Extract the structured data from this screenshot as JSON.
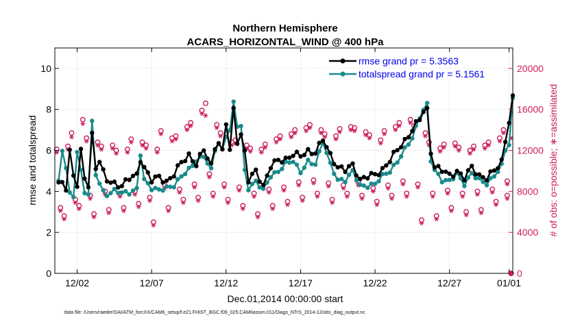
{
  "chart_data": {
    "type": "line",
    "title_line1": "Northern Hemisphere",
    "title_line2": "ACARS_HORIZONTAL_WIND @ 400 hPa",
    "xlabel": "Dec.01,2014 00:00:00 start",
    "ylabel": "rmse and totalspread",
    "y2label": "# of obs: o=possible; ∗=assimilated",
    "footer": "data file: /Users/raeder/DAI/ATM_forcXX/CAM6_setup/f.e21.FHIST_BGC.f09_025.CAM6assim.011/Diags_NTrS_2014-12/obs_diag_output.nc",
    "xlim": [
      0.5,
      31.25
    ],
    "ylim": [
      0,
      11
    ],
    "y2lim": [
      0,
      22000
    ],
    "x_ticks": [
      {
        "x": 2,
        "label": "12/02"
      },
      {
        "x": 7,
        "label": "12/07"
      },
      {
        "x": 12,
        "label": "12/12"
      },
      {
        "x": 17,
        "label": "12/17"
      },
      {
        "x": 22,
        "label": "12/22"
      },
      {
        "x": 27,
        "label": "12/27"
      },
      {
        "x": 31,
        "label": "01/01"
      }
    ],
    "y_ticks": [
      0,
      2,
      4,
      6,
      8,
      10
    ],
    "y2_ticks": [
      0,
      4000,
      8000,
      12000,
      16000,
      20000
    ],
    "colors": {
      "rmse": "#000000",
      "spread": "#1a8a8a",
      "obs": "#cc1c5e"
    },
    "legend": [
      {
        "label": "rmse grand pr = 5.3563",
        "series": "rmse"
      },
      {
        "label": "totalspread grand pr = 5.1561",
        "series": "spread"
      }
    ],
    "rmse_anchors": [
      [
        0.75,
        4.3
      ],
      [
        1.0,
        4.4
      ],
      [
        1.25,
        4.2
      ],
      [
        1.5,
        6.0
      ],
      [
        1.75,
        4.8
      ],
      [
        2.0,
        4.3
      ],
      [
        2.25,
        5.9
      ],
      [
        2.5,
        4.6
      ],
      [
        2.75,
        4.3
      ],
      [
        3.0,
        6.8
      ],
      [
        3.25,
        5.2
      ],
      [
        3.5,
        5.5
      ],
      [
        3.75,
        4.9
      ],
      [
        4.0,
        4.5
      ],
      [
        4.5,
        4.4
      ],
      [
        5.0,
        4.3
      ],
      [
        5.5,
        4.6
      ],
      [
        6.0,
        4.8
      ],
      [
        6.25,
        5.6
      ],
      [
        6.5,
        5.2
      ],
      [
        7.0,
        4.5
      ],
      [
        7.5,
        4.7
      ],
      [
        8.0,
        4.5
      ],
      [
        8.5,
        4.8
      ],
      [
        9.0,
        5.4
      ],
      [
        9.5,
        5.8
      ],
      [
        10.0,
        5.3
      ],
      [
        10.5,
        6.0
      ],
      [
        11.0,
        5.3
      ],
      [
        11.25,
        6.2
      ],
      [
        11.5,
        6.4
      ],
      [
        11.75,
        5.9
      ],
      [
        12.0,
        7.3
      ],
      [
        12.25,
        6.0
      ],
      [
        12.5,
        8.0
      ],
      [
        12.75,
        6.5
      ],
      [
        13.0,
        6.8
      ],
      [
        13.25,
        5.9
      ],
      [
        13.5,
        4.5
      ],
      [
        14.0,
        5.0
      ],
      [
        14.5,
        4.3
      ],
      [
        15.0,
        5.2
      ],
      [
        15.5,
        5.5
      ],
      [
        16.0,
        5.6
      ],
      [
        16.5,
        5.8
      ],
      [
        17.0,
        5.7
      ],
      [
        17.5,
        6.0
      ],
      [
        18.0,
        5.9
      ],
      [
        18.5,
        6.5
      ],
      [
        19.0,
        5.8
      ],
      [
        19.5,
        5.2
      ],
      [
        20.0,
        5.0
      ],
      [
        20.5,
        5.3
      ],
      [
        21.0,
        4.6
      ],
      [
        21.5,
        4.7
      ],
      [
        22.0,
        4.8
      ],
      [
        22.5,
        5.1
      ],
      [
        23.0,
        5.5
      ],
      [
        23.5,
        6.0
      ],
      [
        24.0,
        6.5
      ],
      [
        24.5,
        7.0
      ],
      [
        25.0,
        7.5
      ],
      [
        25.25,
        7.9
      ],
      [
        25.5,
        8.0
      ],
      [
        25.75,
        6.0
      ],
      [
        26.0,
        5.2
      ],
      [
        26.5,
        5.0
      ],
      [
        27.0,
        4.8
      ],
      [
        27.5,
        5.0
      ],
      [
        28.0,
        4.6
      ],
      [
        28.5,
        5.2
      ],
      [
        29.0,
        4.8
      ],
      [
        29.5,
        4.6
      ],
      [
        30.0,
        5.0
      ],
      [
        30.5,
        5.5
      ],
      [
        30.75,
        6.5
      ],
      [
        31.0,
        7.4
      ],
      [
        31.25,
        8.5
      ]
    ],
    "spread_anchors": [
      [
        0.75,
        4.5
      ],
      [
        1.0,
        6.0
      ],
      [
        1.25,
        5.2
      ],
      [
        1.5,
        3.8
      ],
      [
        1.75,
        3.7
      ],
      [
        2.0,
        6.0
      ],
      [
        2.25,
        5.0
      ],
      [
        2.5,
        4.0
      ],
      [
        2.75,
        3.9
      ],
      [
        3.0,
        7.3
      ],
      [
        3.25,
        4.8
      ],
      [
        3.5,
        4.4
      ],
      [
        3.75,
        4.0
      ],
      [
        4.0,
        3.9
      ],
      [
        4.5,
        4.0
      ],
      [
        5.0,
        3.9
      ],
      [
        5.5,
        4.0
      ],
      [
        6.0,
        4.1
      ],
      [
        6.25,
        5.8
      ],
      [
        6.5,
        4.5
      ],
      [
        7.0,
        4.2
      ],
      [
        7.5,
        4.1
      ],
      [
        8.0,
        4.1
      ],
      [
        8.5,
        4.3
      ],
      [
        9.0,
        4.8
      ],
      [
        9.5,
        5.0
      ],
      [
        10.0,
        5.5
      ],
      [
        10.5,
        5.8
      ],
      [
        11.0,
        5.0
      ],
      [
        11.25,
        6.0
      ],
      [
        11.5,
        6.3
      ],
      [
        11.75,
        6.0
      ],
      [
        12.0,
        6.8
      ],
      [
        12.25,
        7.0
      ],
      [
        12.5,
        8.3
      ],
      [
        12.75,
        7.2
      ],
      [
        13.0,
        7.1
      ],
      [
        13.25,
        5.0
      ],
      [
        13.5,
        4.2
      ],
      [
        14.0,
        4.5
      ],
      [
        14.5,
        4.0
      ],
      [
        15.0,
        4.8
      ],
      [
        15.5,
        5.0
      ],
      [
        16.0,
        5.3
      ],
      [
        16.5,
        5.5
      ],
      [
        17.0,
        5.0
      ],
      [
        17.5,
        5.4
      ],
      [
        18.0,
        5.3
      ],
      [
        18.5,
        6.5
      ],
      [
        19.0,
        5.3
      ],
      [
        19.5,
        4.5
      ],
      [
        20.0,
        4.6
      ],
      [
        20.5,
        5.0
      ],
      [
        21.0,
        4.2
      ],
      [
        21.5,
        4.3
      ],
      [
        22.0,
        4.4
      ],
      [
        22.5,
        4.7
      ],
      [
        23.0,
        5.0
      ],
      [
        23.5,
        5.5
      ],
      [
        24.0,
        6.0
      ],
      [
        24.5,
        6.6
      ],
      [
        25.0,
        7.7
      ],
      [
        25.25,
        8.0
      ],
      [
        25.5,
        8.2
      ],
      [
        25.75,
        5.5
      ],
      [
        26.0,
        5.0
      ],
      [
        26.5,
        4.6
      ],
      [
        27.0,
        4.5
      ],
      [
        27.5,
        4.8
      ],
      [
        28.0,
        4.4
      ],
      [
        28.5,
        4.9
      ],
      [
        29.0,
        4.5
      ],
      [
        29.5,
        4.4
      ],
      [
        30.0,
        4.8
      ],
      [
        30.5,
        5.2
      ],
      [
        30.75,
        6.0
      ],
      [
        31.0,
        6.3
      ],
      [
        31.25,
        8.5
      ]
    ],
    "possible_pairs": [
      [
        0.75,
        12100,
        6400
      ],
      [
        1.25,
        5600,
        12400
      ],
      [
        1.75,
        13700,
        7200
      ],
      [
        2.25,
        6600,
        15000
      ],
      [
        2.75,
        13200,
        7600
      ],
      [
        3.25,
        5800,
        12800
      ],
      [
        3.75,
        12400,
        8000
      ],
      [
        4.25,
        6200,
        12500
      ],
      [
        4.75,
        12000,
        7800
      ],
      [
        5.25,
        6400,
        12100
      ],
      [
        5.75,
        13100,
        8000
      ],
      [
        6.25,
        6800,
        12800
      ],
      [
        6.75,
        12500,
        7400
      ],
      [
        7.25,
        5000,
        12100
      ],
      [
        7.75,
        13900,
        8600
      ],
      [
        8.25,
        6400,
        13200
      ],
      [
        8.75,
        13400,
        8200
      ],
      [
        9.25,
        7200,
        14300
      ],
      [
        9.75,
        14700,
        8700
      ],
      [
        10.25,
        7400,
        15900
      ],
      [
        10.75,
        16600,
        9700
      ],
      [
        11.25,
        7800,
        14500
      ],
      [
        11.75,
        13700,
        8700
      ],
      [
        12.25,
        7200,
        12800
      ],
      [
        12.75,
        13000,
        8400
      ],
      [
        13.25,
        6600,
        12500
      ],
      [
        13.75,
        12200,
        7800
      ],
      [
        14.25,
        5800,
        12100
      ],
      [
        14.75,
        12600,
        8200
      ],
      [
        15.25,
        6600,
        13100
      ],
      [
        15.75,
        13400,
        8400
      ],
      [
        16.25,
        7000,
        13600
      ],
      [
        16.75,
        14000,
        8900
      ],
      [
        17.25,
        7400,
        14200
      ],
      [
        17.75,
        14500,
        9100
      ],
      [
        18.25,
        7800,
        14000
      ],
      [
        18.75,
        13600,
        8800
      ],
      [
        19.25,
        7200,
        13400
      ],
      [
        19.75,
        14100,
        8600
      ],
      [
        20.25,
        7800,
        14300
      ],
      [
        20.75,
        14200,
        8900
      ],
      [
        21.25,
        7600,
        13800
      ],
      [
        21.75,
        13500,
        8300
      ],
      [
        22.25,
        7000,
        13000
      ],
      [
        22.75,
        13900,
        8600
      ],
      [
        23.25,
        7600,
        14300
      ],
      [
        23.75,
        14700,
        9000
      ],
      [
        24.25,
        7800,
        15000
      ],
      [
        24.75,
        14400,
        8700
      ],
      [
        25.25,
        5200,
        13700
      ],
      [
        25.75,
        12800,
        7800
      ],
      [
        26.25,
        5600,
        12200
      ],
      [
        26.75,
        12600,
        8100
      ],
      [
        27.25,
        6400,
        12700
      ],
      [
        27.75,
        12300,
        7800
      ],
      [
        28.25,
        6000,
        12000
      ],
      [
        28.75,
        12400,
        8000
      ],
      [
        29.25,
        6200,
        12500
      ],
      [
        29.75,
        12800,
        8200
      ],
      [
        30.25,
        7000,
        13200
      ],
      [
        30.75,
        14000,
        9000
      ],
      [
        31.0,
        7600,
        0
      ]
    ],
    "assimilated_pairs": [
      [
        0.75,
        11800,
        6100
      ],
      [
        1.25,
        5300,
        12100
      ],
      [
        1.75,
        13300,
        6900
      ],
      [
        2.25,
        6300,
        14600
      ],
      [
        2.75,
        12900,
        7300
      ],
      [
        3.25,
        5500,
        12500
      ],
      [
        3.75,
        12100,
        7700
      ],
      [
        4.25,
        5900,
        12200
      ],
      [
        4.75,
        11700,
        7500
      ],
      [
        5.25,
        6100,
        11800
      ],
      [
        5.75,
        12800,
        7700
      ],
      [
        6.25,
        6500,
        12500
      ],
      [
        6.75,
        12200,
        7100
      ],
      [
        7.25,
        4700,
        11800
      ],
      [
        7.75,
        13600,
        8300
      ],
      [
        8.25,
        6100,
        12900
      ],
      [
        8.75,
        13100,
        7900
      ],
      [
        9.25,
        6900,
        14000
      ],
      [
        9.75,
        14400,
        8400
      ],
      [
        10.25,
        7100,
        15600
      ],
      [
        10.75,
        15400,
        9400
      ],
      [
        11.25,
        7500,
        14200
      ],
      [
        11.75,
        13400,
        8400
      ],
      [
        12.25,
        6900,
        12500
      ],
      [
        12.75,
        12700,
        8100
      ],
      [
        13.25,
        6300,
        12200
      ],
      [
        13.75,
        11900,
        7500
      ],
      [
        14.25,
        5500,
        11800
      ],
      [
        14.75,
        12300,
        7900
      ],
      [
        15.25,
        6300,
        12800
      ],
      [
        15.75,
        13100,
        8100
      ],
      [
        16.25,
        6700,
        13300
      ],
      [
        16.75,
        13700,
        8600
      ],
      [
        17.25,
        7100,
        13900
      ],
      [
        17.75,
        14200,
        8800
      ],
      [
        18.25,
        7500,
        13700
      ],
      [
        18.75,
        13300,
        8500
      ],
      [
        19.25,
        6900,
        13100
      ],
      [
        19.75,
        13800,
        8300
      ],
      [
        20.25,
        7500,
        14000
      ],
      [
        20.75,
        13900,
        8600
      ],
      [
        21.25,
        7300,
        13500
      ],
      [
        21.75,
        13200,
        8000
      ],
      [
        22.25,
        6700,
        12700
      ],
      [
        22.75,
        13600,
        8300
      ],
      [
        23.25,
        7300,
        14000
      ],
      [
        23.75,
        14400,
        8700
      ],
      [
        24.25,
        7500,
        14700
      ],
      [
        24.75,
        14100,
        8400
      ],
      [
        25.25,
        4900,
        13400
      ],
      [
        25.75,
        12500,
        7500
      ],
      [
        26.25,
        5300,
        11900
      ],
      [
        26.75,
        12300,
        7800
      ],
      [
        27.25,
        6100,
        12400
      ],
      [
        27.75,
        12000,
        7500
      ],
      [
        28.25,
        5700,
        11700
      ],
      [
        28.75,
        12100,
        7700
      ],
      [
        29.25,
        5900,
        12200
      ],
      [
        29.75,
        12500,
        7900
      ],
      [
        30.25,
        6700,
        12900
      ],
      [
        30.75,
        13700,
        8700
      ],
      [
        31.0,
        7300,
        13200
      ]
    ]
  }
}
